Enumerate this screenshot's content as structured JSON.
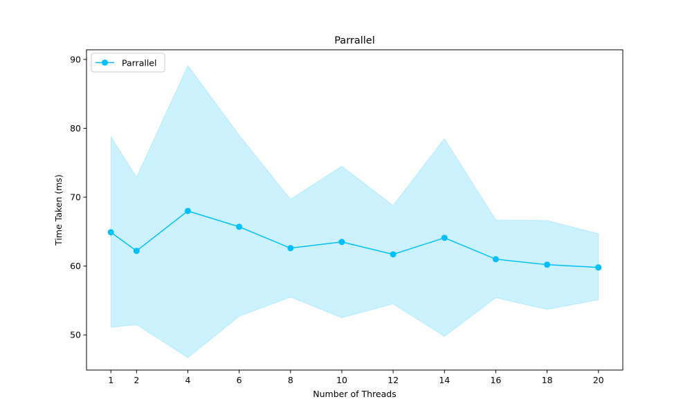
{
  "chart_data": {
    "type": "line",
    "title": "Parrallel",
    "xlabel": "Number of Threads",
    "ylabel": "Time Taken (ms)",
    "xlim": [
      0.05,
      20.95
    ],
    "ylim": [
      44.9,
      91.4
    ],
    "xticks": [
      1,
      2,
      4,
      6,
      8,
      10,
      12,
      14,
      16,
      18,
      20
    ],
    "yticks": [
      50,
      60,
      70,
      80,
      90
    ],
    "legend_position": "upper-left",
    "grid": false,
    "series": [
      {
        "name": "Parrallel",
        "color": "#00bfff",
        "marker": "circle",
        "x": [
          1,
          2,
          4,
          6,
          8,
          10,
          12,
          14,
          16,
          18,
          20
        ],
        "y": [
          64.9,
          62.2,
          68.0,
          65.7,
          62.6,
          63.5,
          61.7,
          64.1,
          61.0,
          60.2,
          59.8
        ],
        "band_upper": [
          78.8,
          72.9,
          89.1,
          79.0,
          69.7,
          74.5,
          68.8,
          78.5,
          66.7,
          66.6,
          64.7
        ],
        "band_lower": [
          51.1,
          51.5,
          46.7,
          52.7,
          55.5,
          52.5,
          54.5,
          49.8,
          55.4,
          53.7,
          55.1
        ],
        "band_color": "#00bfff"
      }
    ]
  }
}
